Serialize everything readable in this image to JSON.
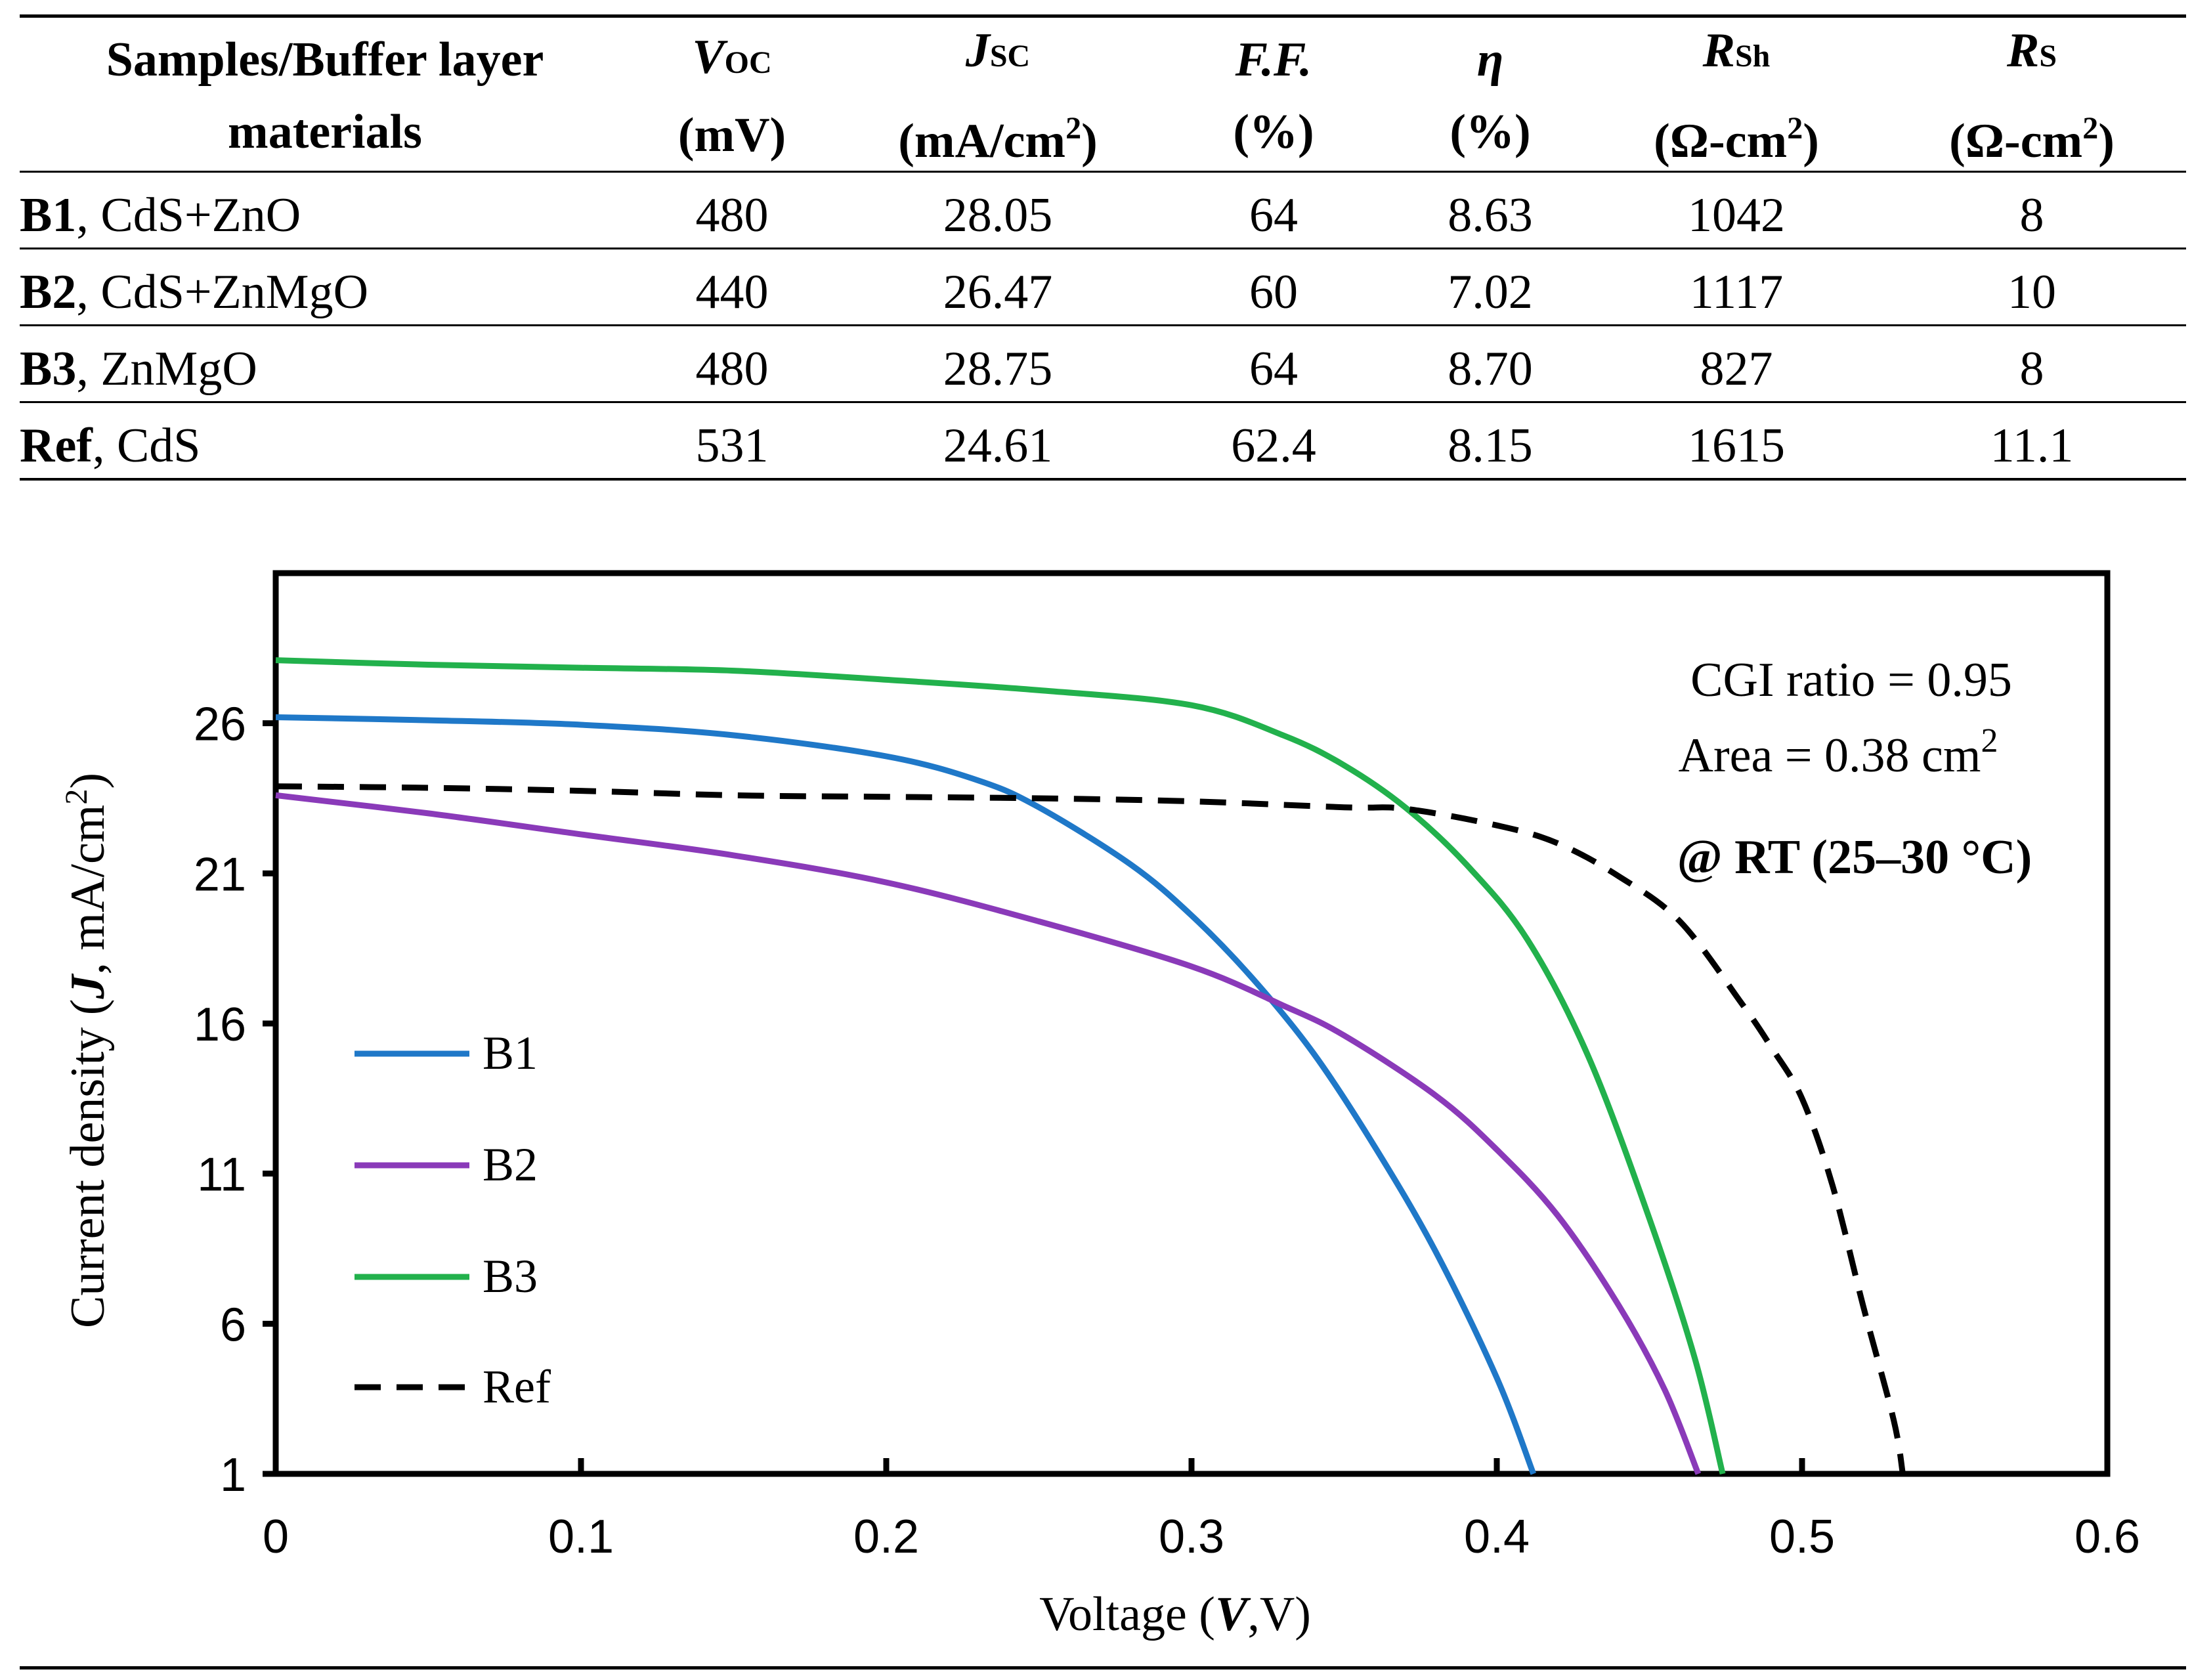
{
  "table": {
    "headers": [
      {
        "line1": "Samples/Buffer layer",
        "line2": "materials"
      },
      {
        "sym": "V",
        "sub": "OC",
        "line2": "(mV)"
      },
      {
        "sym": "J",
        "sub": "SC",
        "line2a": "(mA/cm",
        "sup": "2",
        "line2b": ")"
      },
      {
        "sym": "F.F.",
        "sub": "",
        "line2": "(%)"
      },
      {
        "sym": "η",
        "sub": "",
        "line2": "(%)"
      },
      {
        "sym": "R",
        "sub": "Sh",
        "line2a": "(Ω-cm",
        "sup": "2",
        "line2b": ")"
      },
      {
        "sym": "R",
        "sub": "S",
        "line2a": "(Ω-cm",
        "sup": "2",
        "line2b": ")"
      }
    ],
    "rows": [
      {
        "id": "B1",
        "material": ", CdS+ZnO",
        "voc": "480",
        "jsc": "28.05",
        "ff": "64",
        "eta": "8.63",
        "rsh": "1042",
        "rs": "8"
      },
      {
        "id": "B2",
        "material": ", CdS+ZnMgO",
        "voc": "440",
        "jsc": "26.47",
        "ff": "60",
        "eta": "7.02",
        "rsh": "1117",
        "rs": "10"
      },
      {
        "id": "B3",
        "material": ", ZnMgO",
        "voc": "480",
        "jsc": "28.75",
        "ff": "64",
        "eta": "8.70",
        "rsh": "827",
        "rs": "8"
      },
      {
        "id": "Ref",
        "material": ", CdS",
        "voc": "531",
        "jsc": "24.61",
        "ff": "62.4",
        "eta": "8.15",
        "rsh": "1615",
        "rs": "11.1"
      }
    ]
  },
  "chart_data": {
    "type": "line",
    "xlabel_prefix": "Voltage (",
    "xlabel_var": "V",
    "xlabel_suffix": ",V)",
    "ylabel_prefix": "Current density (",
    "ylabel_var": "J",
    "ylabel_suffix": ", mA/cm",
    "ylabel_sup": "2",
    "ylabel_end": ")",
    "xlim": [
      0,
      0.6
    ],
    "ylim": [
      1,
      31
    ],
    "x_ticks": [
      0,
      0.1,
      0.2,
      0.3,
      0.4,
      0.5,
      0.6
    ],
    "x_tick_labels": [
      "0",
      "0.1",
      "0.2",
      "0.3",
      "0.4",
      "0.5",
      "0.6"
    ],
    "y_ticks": [
      1,
      6,
      11,
      16,
      21,
      26
    ],
    "y_tick_labels": [
      "1",
      "6",
      "11",
      "16",
      "21",
      "26"
    ],
    "annotations": {
      "cgi": "CGI ratio = 0.95",
      "area_prefix": "Area = 0.38 cm",
      "area_sup": "2",
      "rt": "@ RT (25–30 °C)"
    },
    "series": [
      {
        "name": "B1",
        "color": "#1f78c8",
        "dash": false,
        "points": [
          [
            0,
            26.2
          ],
          [
            0.05,
            26.1
          ],
          [
            0.1,
            25.95
          ],
          [
            0.15,
            25.6
          ],
          [
            0.2,
            24.9
          ],
          [
            0.23,
            24.1
          ],
          [
            0.25,
            23.2
          ],
          [
            0.28,
            21.3
          ],
          [
            0.3,
            19.6
          ],
          [
            0.32,
            17.5
          ],
          [
            0.34,
            15
          ],
          [
            0.36,
            11.9
          ],
          [
            0.38,
            8.4
          ],
          [
            0.4,
            4.2
          ],
          [
            0.412,
            1
          ]
        ]
      },
      {
        "name": "B2",
        "color": "#8a3ab9",
        "dash": false,
        "points": [
          [
            0,
            23.6
          ],
          [
            0.05,
            23
          ],
          [
            0.1,
            22.3
          ],
          [
            0.15,
            21.6
          ],
          [
            0.2,
            20.7
          ],
          [
            0.25,
            19.4
          ],
          [
            0.3,
            17.9
          ],
          [
            0.33,
            16.6
          ],
          [
            0.35,
            15.6
          ],
          [
            0.38,
            13.6
          ],
          [
            0.4,
            11.8
          ],
          [
            0.42,
            9.6
          ],
          [
            0.44,
            6.6
          ],
          [
            0.455,
            3.8
          ],
          [
            0.466,
            1
          ]
        ]
      },
      {
        "name": "B3",
        "color": "#22b14c",
        "dash": false,
        "points": [
          [
            0,
            28.1
          ],
          [
            0.05,
            27.95
          ],
          [
            0.1,
            27.85
          ],
          [
            0.15,
            27.75
          ],
          [
            0.2,
            27.45
          ],
          [
            0.25,
            27.1
          ],
          [
            0.3,
            26.6
          ],
          [
            0.33,
            25.6
          ],
          [
            0.35,
            24.6
          ],
          [
            0.37,
            23.2
          ],
          [
            0.39,
            21.3
          ],
          [
            0.41,
            18.8
          ],
          [
            0.43,
            14.9
          ],
          [
            0.45,
            9.5
          ],
          [
            0.465,
            4.8
          ],
          [
            0.474,
            1
          ]
        ]
      },
      {
        "name": "Ref",
        "color": "#000000",
        "dash": true,
        "points": [
          [
            0,
            23.9
          ],
          [
            0.05,
            23.85
          ],
          [
            0.1,
            23.75
          ],
          [
            0.15,
            23.6
          ],
          [
            0.2,
            23.55
          ],
          [
            0.25,
            23.5
          ],
          [
            0.3,
            23.4
          ],
          [
            0.35,
            23.2
          ],
          [
            0.37,
            23.15
          ],
          [
            0.4,
            22.6
          ],
          [
            0.42,
            22
          ],
          [
            0.44,
            20.9
          ],
          [
            0.46,
            19.4
          ],
          [
            0.48,
            16.7
          ],
          [
            0.49,
            15.2
          ],
          [
            0.5,
            13.5
          ],
          [
            0.51,
            10.6
          ],
          [
            0.52,
            6.6
          ],
          [
            0.53,
            2.8
          ],
          [
            0.533,
            1
          ]
        ]
      }
    ]
  }
}
